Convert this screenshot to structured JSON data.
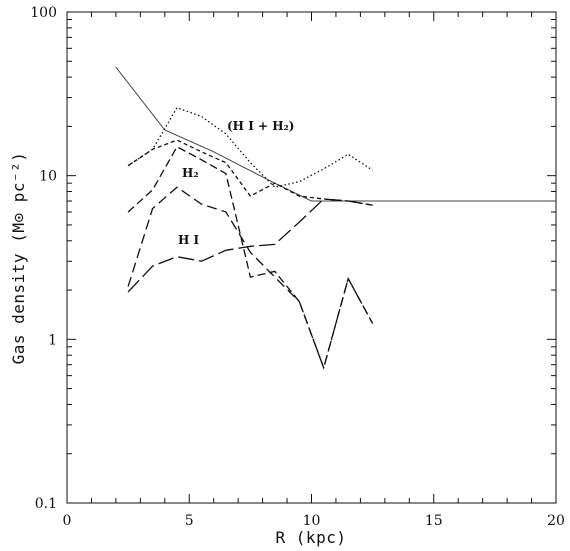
{
  "chart_data": {
    "type": "line",
    "xlabel": "R (kpc)",
    "ylabel": "Gas density (M⊙ pc⁻²)",
    "xlim": [
      0,
      20
    ],
    "ylim": [
      0.1,
      100
    ],
    "yscale": "log",
    "grid": false,
    "xticks": [
      0,
      5,
      10,
      15,
      20
    ],
    "xtick_labels": [
      "0",
      "5",
      "10",
      "15",
      "20"
    ],
    "yticks": [
      0.1,
      1,
      10,
      100
    ],
    "ytick_labels": [
      "0.1",
      "1",
      "10",
      "100"
    ],
    "annotations": [
      {
        "text": "(H I + H₂)",
        "x": 5.4,
        "y": 30
      },
      {
        "text": "H₂",
        "x": 4.8,
        "y": 11.5
      },
      {
        "text": "H I",
        "x": 4.6,
        "y": 5.5
      }
    ],
    "series": [
      {
        "style": "solid",
        "stroke": "#444444",
        "x": [
          2.0,
          4.0,
          6.0,
          8.5,
          10.0,
          20.0
        ],
        "y": [
          46,
          19,
          14,
          9,
          7,
          7
        ]
      },
      {
        "style": "dotted",
        "stroke": "#111111",
        "x": [
          2.5,
          3.5,
          4.5,
          5.5,
          6.5,
          7.5,
          8.5,
          9.5,
          10.5,
          11.5,
          12.5
        ],
        "y": [
          11.5,
          14.5,
          26,
          23,
          18,
          12,
          8.5,
          9.2,
          11,
          13.5,
          10.8
        ]
      },
      {
        "style": "short-dashed",
        "stroke": "#111111",
        "x": [
          2.5,
          3.5,
          4.5,
          5.5,
          6.5,
          7.5,
          8.5,
          9.5,
          10.5,
          11.5,
          12.5
        ],
        "y": [
          11.5,
          14.5,
          16.5,
          14,
          12,
          7.5,
          9,
          7.5,
          7.2,
          7,
          6.6
        ]
      },
      {
        "style": "dashed",
        "stroke": "#111111",
        "x": [
          2.5,
          3.5,
          4.5,
          5.5,
          6.5,
          7.5,
          8.5,
          9.5,
          10.5,
          11.5,
          12.5
        ],
        "y": [
          6,
          8.2,
          15,
          12.5,
          10.3,
          2.4,
          2.6,
          1.7,
          0.67,
          2.35,
          1.25
        ]
      },
      {
        "style": "medium-dashed",
        "stroke": "#111111",
        "x": [
          2.5,
          3.5,
          4.5,
          5.5,
          6.5,
          7.5,
          8.5,
          9.5,
          10.5,
          11.5,
          12.5
        ],
        "y": [
          2.1,
          6.3,
          8.5,
          6.7,
          6.0,
          3.4,
          2.4,
          1.7,
          0.67,
          2.35,
          1.25
        ]
      },
      {
        "style": "long-dashed",
        "stroke": "#111111",
        "x": [
          2.5,
          3.5,
          4.5,
          5.5,
          6.5,
          7.5,
          8.5,
          9.5,
          10.5,
          11.5,
          12.5
        ],
        "y": [
          1.95,
          2.8,
          3.2,
          3.0,
          3.5,
          3.7,
          3.8,
          5.2,
          7.2,
          7.0,
          6.6
        ]
      }
    ]
  }
}
